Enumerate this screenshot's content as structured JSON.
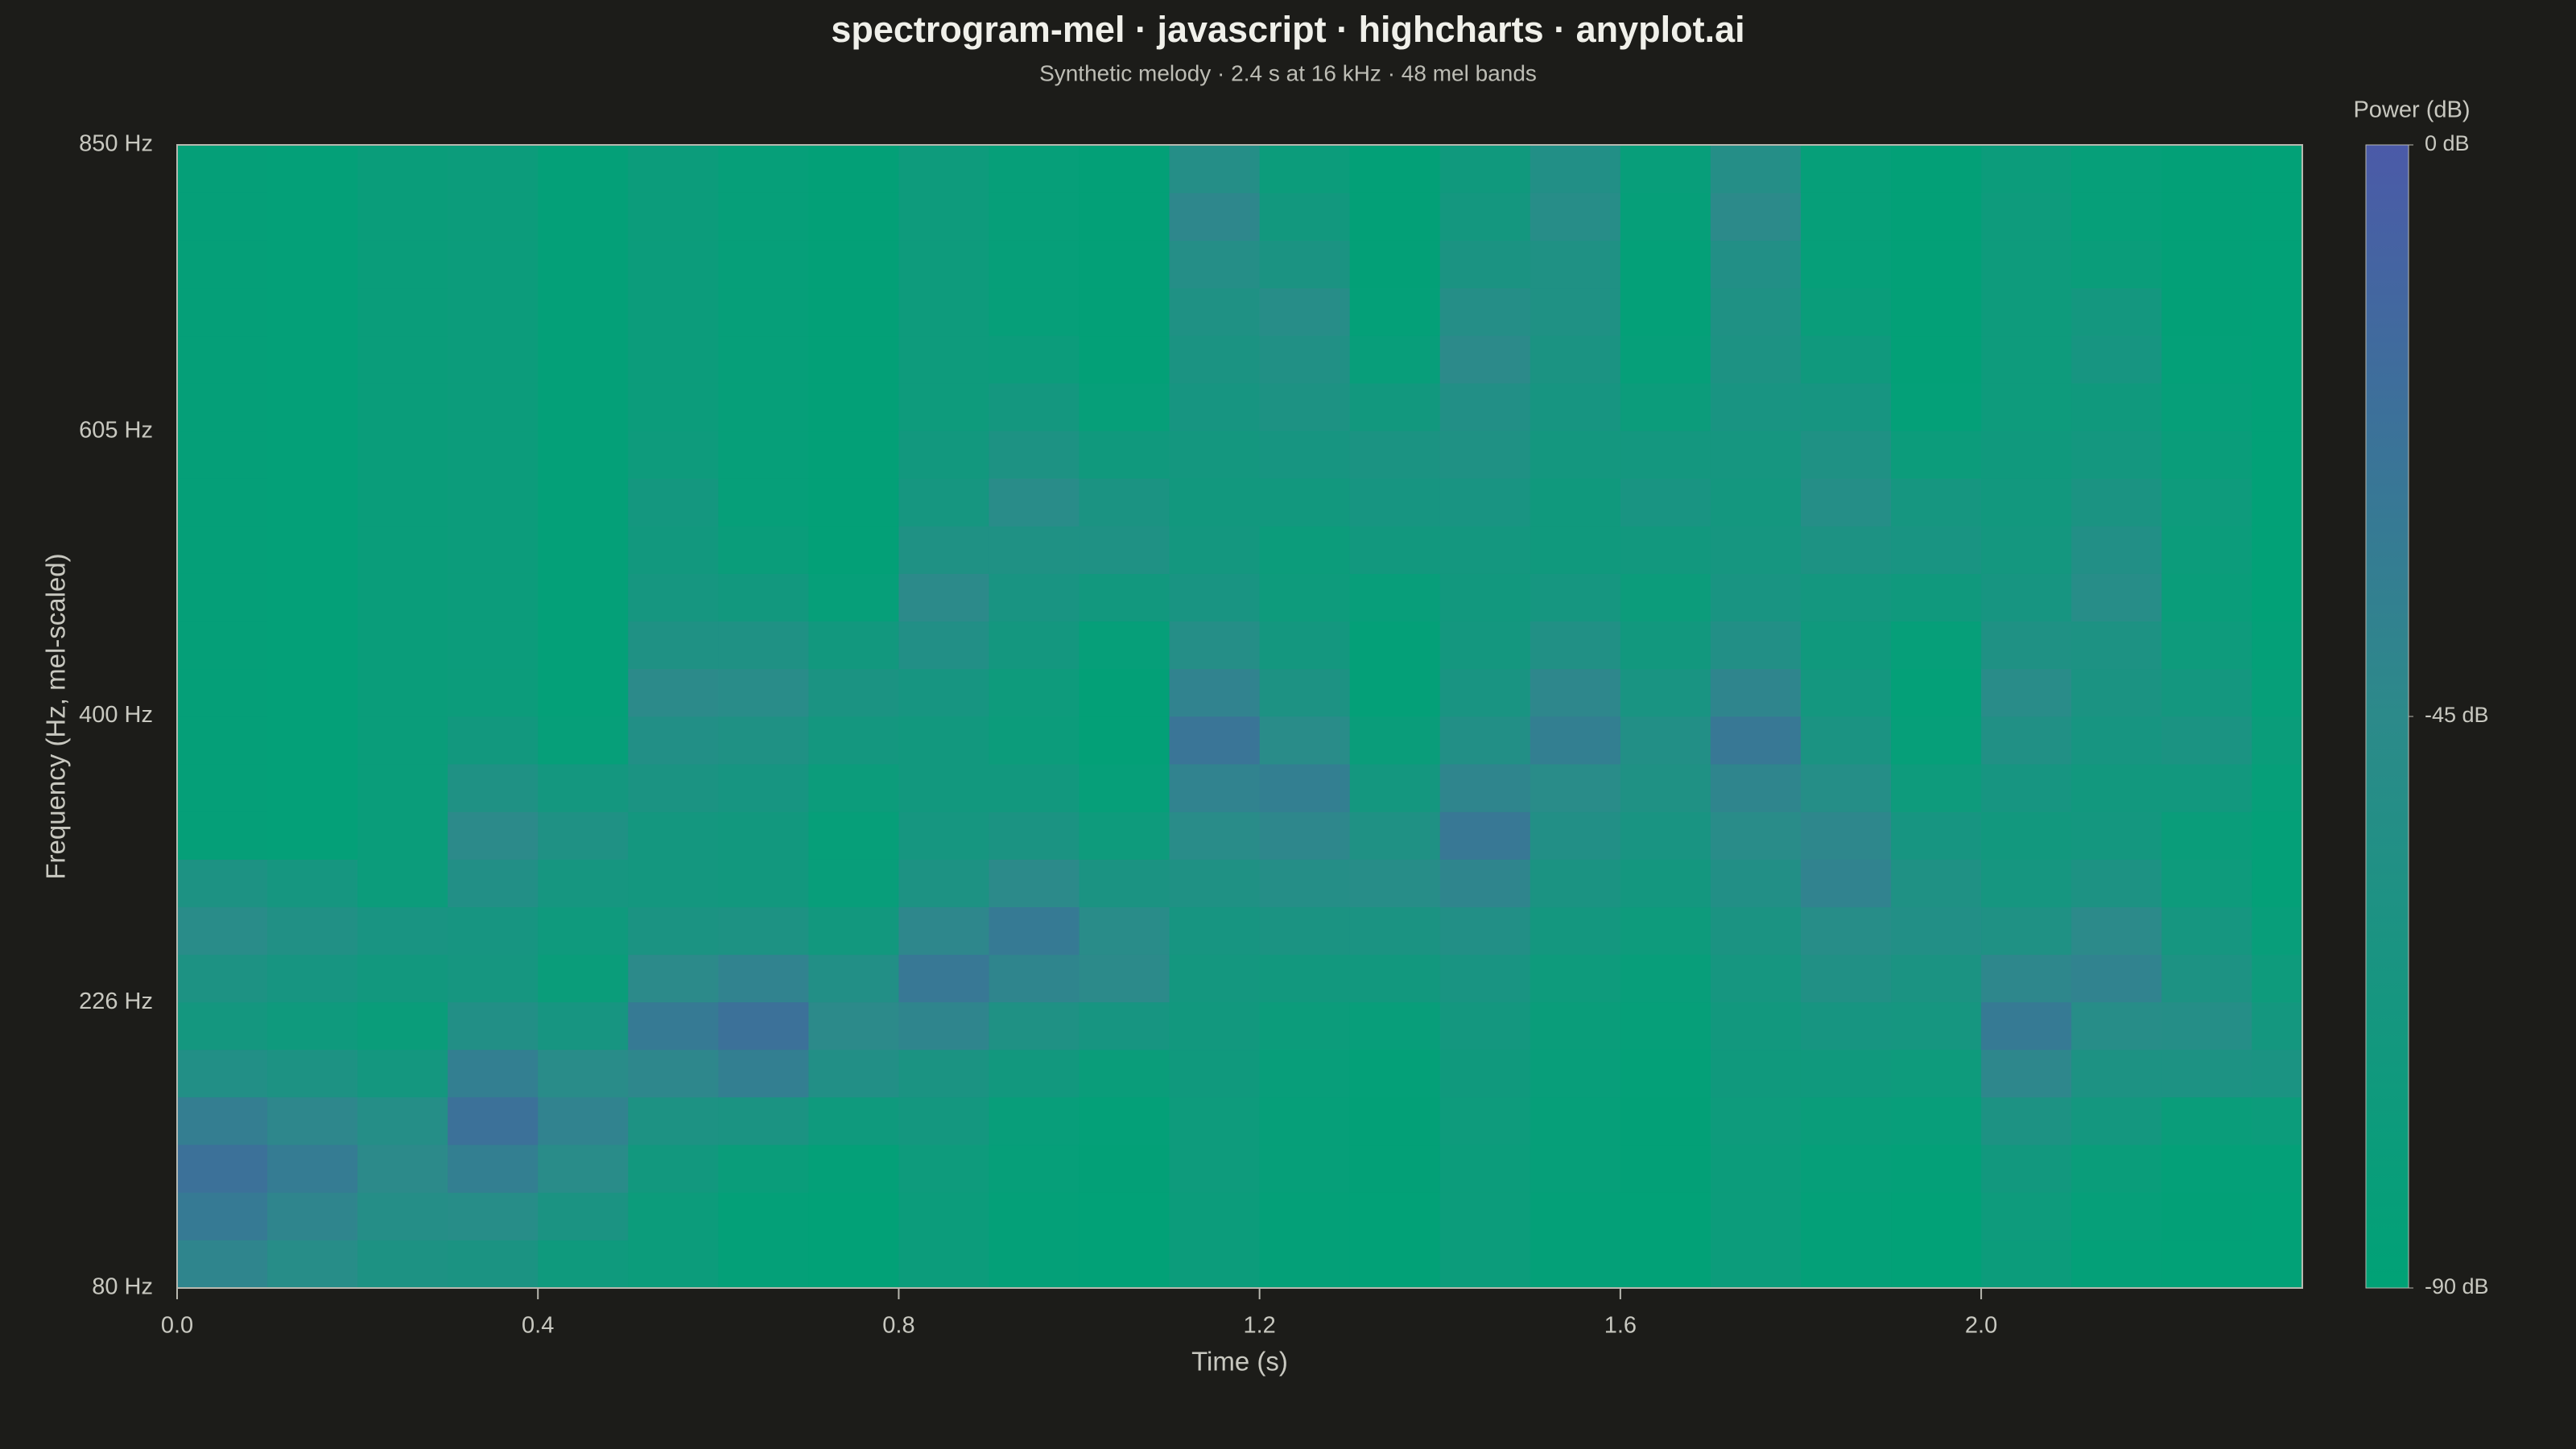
{
  "chart_data": {
    "type": "heatmap",
    "title": "spectrogram-mel · javascript · highcharts · anyplot.ai",
    "subtitle": "Synthetic melody · 2.4 s at 16 kHz · 48 mel bands",
    "xlabel": "Time (s)",
    "ylabel": "Frequency (Hz, mel-scaled)",
    "xlim": [
      0,
      2.356
    ],
    "xticks": [
      {
        "value": 0,
        "label": "0.0"
      },
      0.4,
      0.8,
      1.2,
      1.6,
      {
        "value": 2,
        "label": "2.0"
      }
    ],
    "yscale": "mel",
    "ylim": [
      80,
      850
    ],
    "yticks": [
      {
        "value": 80,
        "label": "80 Hz"
      },
      {
        "value": 226,
        "label": "226 Hz"
      },
      {
        "value": 400,
        "label": "400 Hz"
      },
      {
        "value": 605,
        "label": "605 Hz"
      },
      {
        "value": 850,
        "label": "850 Hz"
      }
    ],
    "x": [
      0,
      0.1,
      0.2,
      0.3,
      0.4,
      0.5,
      0.6,
      0.7,
      0.8,
      0.9,
      1.0,
      1.1,
      1.2,
      1.3,
      1.4,
      1.5,
      1.6,
      1.7,
      1.8,
      1.9,
      2.0,
      2.1,
      2.2,
      2.3
    ],
    "y": [
      91.5,
      114.4,
      138.1,
      162.6,
      187.4,
      213.2,
      239.6,
      266.8,
      294.9,
      323.7,
      353.4,
      384.2,
      415.5,
      447.9,
      481.2,
      515.4,
      550.7,
      587.1,
      624.4,
      662.8,
      702.2,
      743.0,
      784.8,
      827.8
    ],
    "z": [
      [
        -40,
        -30,
        -22,
        -34,
        -55,
        -70,
        -60,
        -48,
        -60,
        -85,
        -85,
        -85,
        -85,
        -85,
        -85,
        -85,
        -85,
        -85,
        -85,
        -85,
        -85,
        -85,
        -85,
        -85
      ],
      [
        -50,
        -40,
        -32,
        -42,
        -60,
        -75,
        -66,
        -56,
        -68,
        -86,
        -86,
        -86,
        -86,
        -86,
        -86,
        -86,
        -86,
        -86,
        -86,
        -86,
        -86,
        -86,
        -86,
        -86
      ],
      [
        -60,
        -52,
        -45,
        -52,
        -70,
        -80,
        -72,
        -64,
        -78,
        -80,
        -80,
        -80,
        -80,
        -80,
        -80,
        -80,
        -80,
        -80,
        -80,
        -80,
        -80,
        -80,
        -80,
        -80
      ],
      [
        -62,
        -50,
        -35,
        -22,
        -35,
        -55,
        -68,
        -66,
        -55,
        -45,
        -58,
        -72,
        -78,
        -78,
        -78,
        -78,
        -78,
        -78,
        -78,
        -78,
        -78,
        -78,
        -78,
        -78
      ],
      [
        -75,
        -62,
        -48,
        -38,
        -48,
        -66,
        -80,
        -75,
        -68,
        -58,
        -70,
        -84,
        -86,
        -86,
        -86,
        -86,
        -86,
        -86,
        -86,
        -86,
        -86,
        -86,
        -86,
        -86
      ],
      [
        -78,
        -78,
        -72,
        -60,
        -42,
        -30,
        -45,
        -62,
        -70,
        -70,
        -62,
        -55,
        -45,
        -58,
        -68,
        -72,
        -70,
        -76,
        -78,
        -78,
        -78,
        -78,
        -78,
        -78
      ],
      [
        -86,
        -86,
        -80,
        -62,
        -35,
        -22,
        -38,
        -60,
        -72,
        -72,
        -66,
        -58,
        -48,
        -58,
        -72,
        -80,
        -84,
        -84,
        -84,
        -84,
        -84,
        -84,
        -84,
        -84
      ],
      [
        -88,
        -88,
        -86,
        -75,
        -55,
        -45,
        -55,
        -72,
        -82,
        -84,
        -78,
        -70,
        -62,
        -72,
        -84,
        -87,
        -87,
        -87,
        -87,
        -87,
        -87,
        -87,
        -87,
        -87
      ],
      [
        -78,
        -78,
        -76,
        -70,
        -62,
        -40,
        -28,
        -42,
        -60,
        -68,
        -72,
        -72,
        -66,
        -55,
        -45,
        -58,
        -68,
        -72,
        -76,
        -76,
        -76,
        -76,
        -76,
        -76
      ],
      [
        -86,
        -86,
        -84,
        -82,
        -72,
        -58,
        -40,
        -30,
        -45,
        -62,
        -72,
        -78,
        -76,
        -70,
        -64,
        -58,
        -48,
        -60,
        -70,
        -78,
        -84,
        -84,
        -84,
        -84
      ],
      [
        -88,
        -88,
        -87,
        -86,
        -80,
        -66,
        -45,
        -48,
        -62,
        -76,
        -84,
        -87,
        -87,
        -84,
        -72,
        -58,
        -62,
        -74,
        -84,
        -87,
        -87,
        -87,
        -87,
        -87
      ],
      [
        -78,
        -78,
        -76,
        -76,
        -74,
        -72,
        -70,
        -66,
        -58,
        -48,
        -38,
        -25,
        -38,
        -52,
        -64,
        -70,
        -72,
        -70,
        -66,
        -62,
        -58,
        -52,
        -42,
        -52
      ],
      [
        -86,
        -86,
        -84,
        -84,
        -82,
        -78,
        -72,
        -62,
        -52,
        -42,
        -35,
        -48,
        -60,
        -70,
        -76,
        -78,
        -72,
        -66,
        -60,
        -56,
        -50,
        -62,
        -72,
        -78
      ],
      [
        -88,
        -88,
        -87,
        -87,
        -86,
        -82,
        -72,
        -62,
        -50,
        -58,
        -70,
        -80,
        -86,
        -86,
        -82,
        -72,
        -66,
        -62,
        -72,
        -82,
        -86,
        -87,
        -87,
        -87
      ],
      [
        -78,
        -78,
        -78,
        -76,
        -74,
        -70,
        -64,
        -55,
        -40,
        -28,
        -40,
        -55,
        -64,
        -70,
        -72,
        -70,
        -64,
        -58,
        -55,
        -45,
        -52,
        -62,
        -70,
        -74
      ],
      [
        -86,
        -86,
        -84,
        -84,
        -82,
        -80,
        -76,
        -70,
        -62,
        -55,
        -48,
        -35,
        -42,
        -56,
        -68,
        -74,
        -74,
        -70,
        -66,
        -62,
        -58,
        -58,
        -50,
        -55
      ],
      [
        -88,
        -88,
        -87,
        -87,
        -86,
        -84,
        -82,
        -76,
        -70,
        -64,
        -58,
        -55,
        -64,
        -72,
        -78,
        -72,
        -64,
        -70,
        -78,
        -84,
        -86,
        -86,
        -84,
        -82
      ],
      [
        -78,
        -78,
        -78,
        -76,
        -74,
        -72,
        -68,
        -62,
        -55,
        -48,
        -40,
        -28,
        -40,
        -55,
        -64,
        -68,
        -70,
        -68,
        -64,
        -60,
        -58,
        -55,
        -45,
        -52
      ],
      [
        -86,
        -86,
        -84,
        -80,
        -74,
        -66,
        -56,
        -50,
        -38,
        -42,
        -52,
        -62,
        -70,
        -74,
        -70,
        -60,
        -52,
        -58,
        -66,
        -74,
        -80,
        -84,
        -84,
        -84
      ],
      [
        -88,
        -88,
        -86,
        -82,
        -76,
        -68,
        -62,
        -55,
        -58,
        -66,
        -76,
        -84,
        -86,
        -84,
        -74,
        -64,
        -68,
        -78,
        -86,
        -87,
        -87,
        -87,
        -87,
        -87
      ],
      [
        -78,
        -76,
        -72,
        -60,
        -42,
        -30,
        -42,
        -58,
        -68,
        -72,
        -66,
        -56,
        -48,
        -58,
        -66,
        -70,
        -72,
        -74,
        -76,
        -76,
        -76,
        -76,
        -76,
        -78
      ],
      [
        -86,
        -84,
        -80,
        -70,
        -60,
        -50,
        -38,
        -45,
        -60,
        -70,
        -72,
        -66,
        -62,
        -60,
        -50,
        -55,
        -62,
        -70,
        -74,
        -66,
        -70,
        -80,
        -84,
        -84
      ],
      [
        -88,
        -87,
        -86,
        -80,
        -60,
        -52,
        -60,
        -68,
        -76,
        -80,
        -72,
        -62,
        -70,
        -76,
        -80,
        -78,
        -76,
        -80,
        -84,
        -86,
        -87,
        -87,
        -87,
        -87
      ],
      [
        -88,
        -88,
        -86,
        -78,
        -62,
        -70,
        -76,
        -82,
        -86,
        -86,
        -84,
        -80,
        -84,
        -86,
        -88,
        -88,
        -88,
        -88,
        -88,
        -88,
        -88,
        -88,
        -88,
        -88
      ]
    ],
    "colorbar_title": "Power (dB)",
    "zlim": [
      -90,
      0
    ],
    "zticks": [
      {
        "value": 0,
        "label": "0 dB"
      },
      {
        "value": -45,
        "label": "-45 dB"
      },
      {
        "value": -90,
        "label": "-90 dB"
      }
    ],
    "colorscale": [
      [
        -90,
        "#00a276"
      ],
      [
        -45,
        "#2c8a8a"
      ],
      [
        0,
        "#4b5aa8"
      ]
    ]
  }
}
